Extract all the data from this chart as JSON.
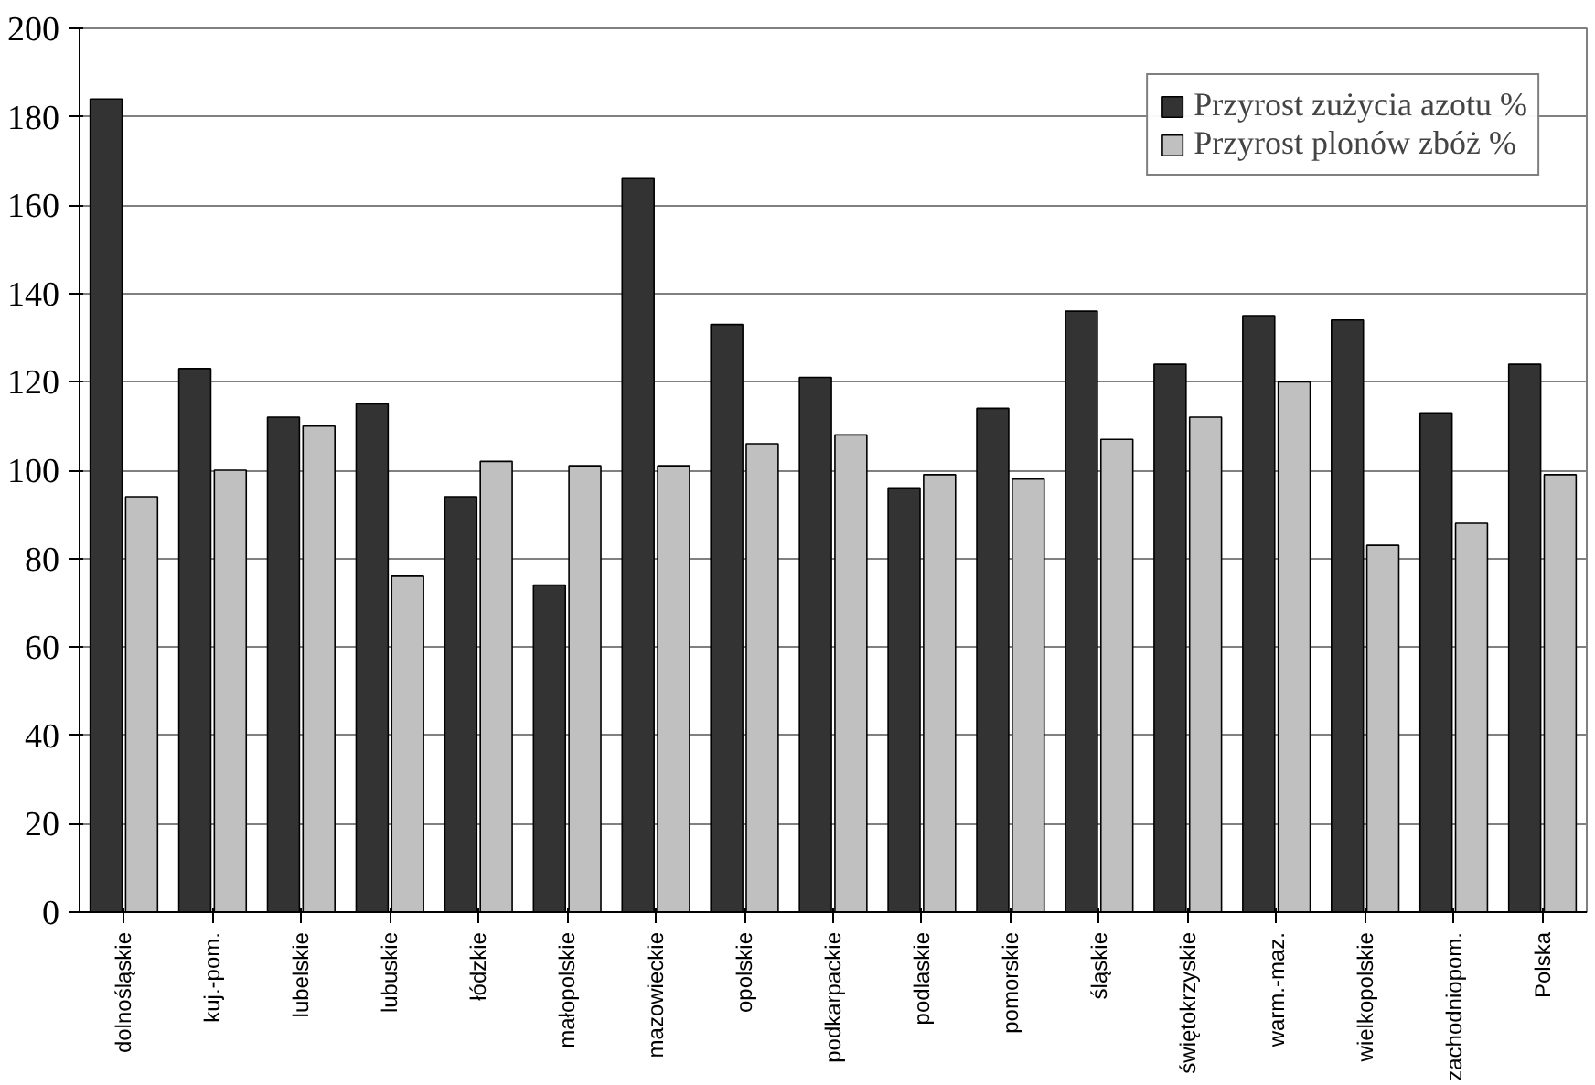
{
  "chart_data": {
    "type": "bar",
    "categories": [
      "dolnośląskie",
      "kuj.-pom.",
      "lubelskie",
      "lubuskie",
      "łódzkie",
      "małopolskie",
      "mazowieckie",
      "opolskie",
      "podkarpackie",
      "podlaskie",
      "pomorskie",
      "śląskie",
      "świętokrzyskie",
      "warm.-maz.",
      "wielkopolskie",
      "zachodniopom.",
      "Polska"
    ],
    "series": [
      {
        "name": "Przyrost zużycia azotu %",
        "color": "#333333",
        "values": [
          184,
          123,
          112,
          115,
          94,
          74,
          166,
          133,
          121,
          96,
          114,
          136,
          124,
          135,
          134,
          113,
          124
        ]
      },
      {
        "name": "Przyrost plonów zbóż %",
        "color": "#c0c0c0",
        "values": [
          94,
          100,
          110,
          76,
          102,
          101,
          101,
          106,
          108,
          99,
          98,
          107,
          112,
          120,
          83,
          88,
          99
        ]
      }
    ],
    "ylim": [
      0,
      200
    ],
    "yticks": [
      0,
      20,
      40,
      60,
      80,
      100,
      120,
      140,
      160,
      180,
      200
    ],
    "grid": "y",
    "legend": "top right"
  }
}
